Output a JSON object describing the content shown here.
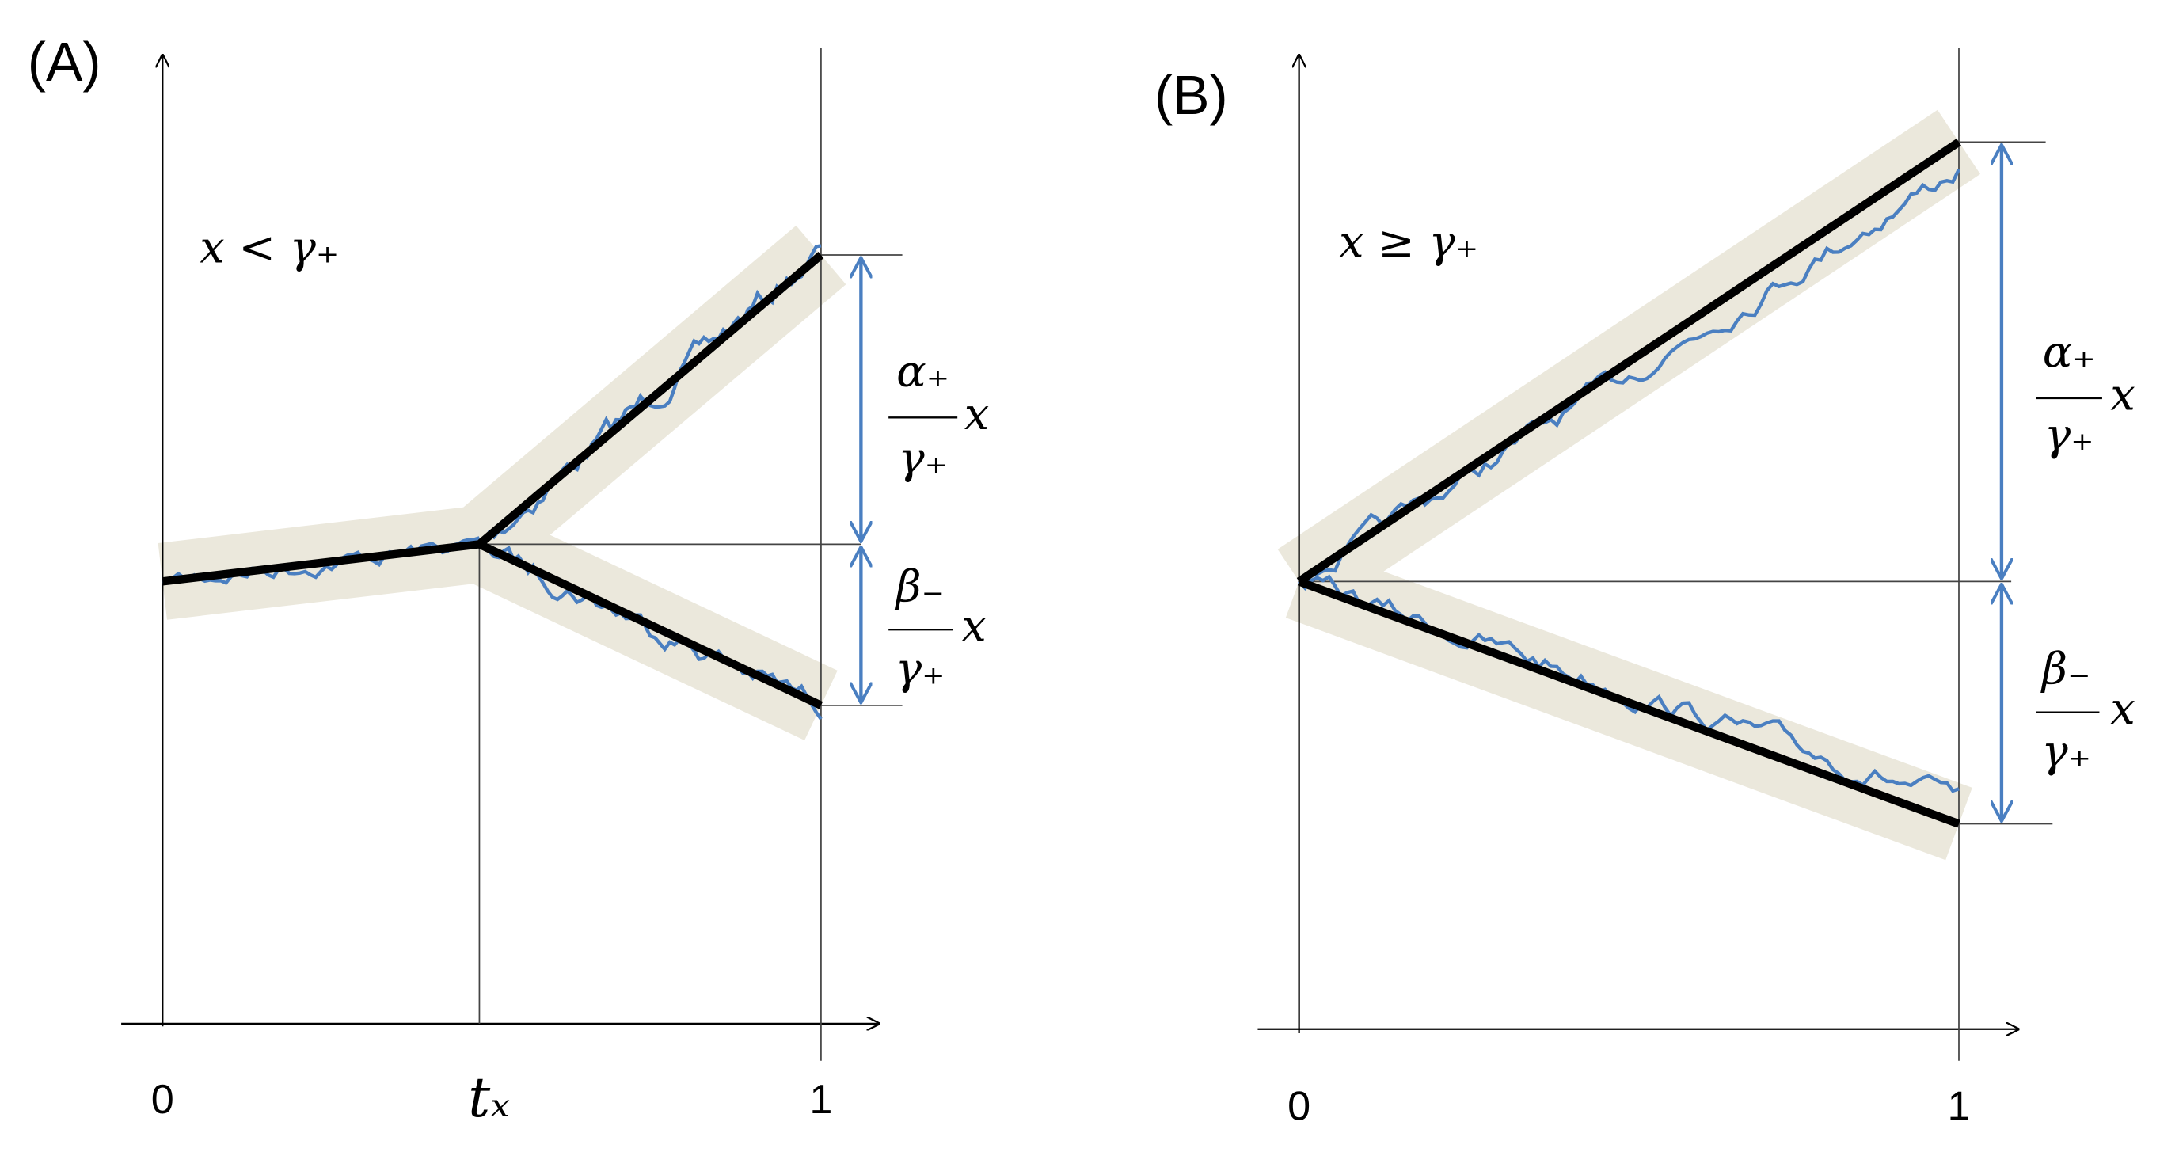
{
  "panels": [
    {
      "label": "(A)",
      "condition": "x < γ₊",
      "upper_fraction": {
        "numerator": "α₊",
        "denominator": "γ₊",
        "factor": "x"
      },
      "lower_fraction": {
        "numerator": "β₋",
        "denominator": "γ₊",
        "factor": "x"
      },
      "x_tick_labels": [
        "0",
        "tₓ",
        "1"
      ]
    },
    {
      "label": "(B)",
      "condition": "x ≥ γ₊",
      "upper_fraction": {
        "numerator": "α₊",
        "denominator": "γ₊",
        "factor": "x"
      },
      "lower_fraction": {
        "numerator": "β₋",
        "denominator": "γ₊",
        "factor": "x"
      },
      "x_tick_labels": [
        "0",
        "1"
      ]
    }
  ]
}
